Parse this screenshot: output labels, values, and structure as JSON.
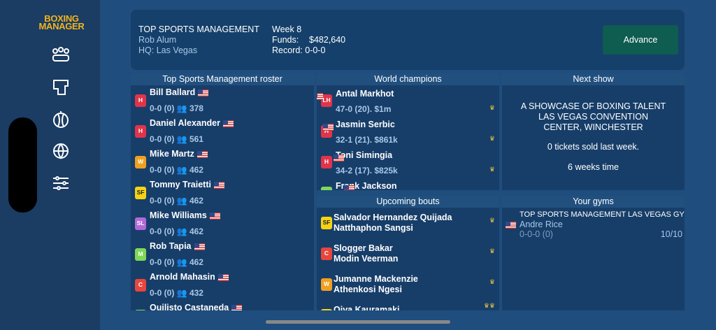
{
  "logo": {
    "line1": "BOXING",
    "line2": "MANAGER"
  },
  "header": {
    "team": "TOP SPORTS MANAGEMENT",
    "manager": "Rob Alum",
    "hq": "HQ: Las Vegas",
    "week": "Week 8",
    "funds_label": "Funds:",
    "funds": "$482,640",
    "record": "Record: 0-0-0",
    "button": "Advance"
  },
  "roster": {
    "title": "Top Sports Management roster",
    "boxers": [
      {
        "name": "Bill Ballard",
        "badge": "H",
        "badge_color": "#e0344a",
        "record": "0-0 (0)",
        "fans": "378"
      },
      {
        "name": "Daniel Alexander",
        "badge": "H",
        "badge_color": "#e0344a",
        "record": "0-0 (0)",
        "fans": "561"
      },
      {
        "name": "Mike Martz",
        "badge": "W",
        "badge_color": "#f0a020",
        "record": "0-0 (0)",
        "fans": "462"
      },
      {
        "name": "Tommy Traietti",
        "badge": "SF",
        "badge_color": "#f5d313",
        "record": "0-0 (0)",
        "fans": "462"
      },
      {
        "name": "Mike Williams",
        "badge": "SL",
        "badge_color": "#b06ad8",
        "record": "0-0 (0)",
        "fans": "462"
      },
      {
        "name": "Rob Tapia",
        "badge": "M",
        "badge_color": "#7ed957",
        "record": "0-0 (0)",
        "fans": "462"
      },
      {
        "name": "Arnold Mahasin",
        "badge": "C",
        "badge_color": "#e8463c",
        "record": "0-0 (0)",
        "fans": "432"
      },
      {
        "name": "Quilisto Castaneda",
        "badge_color": "#7ed957"
      }
    ]
  },
  "champions": {
    "title": "World champions",
    "boxers": [
      {
        "name": "Antal Markhot",
        "badge": "LH",
        "badge_color": "#e0344a",
        "stats": "47-0 (20). $1m"
      },
      {
        "name": "Jasmin Serbic",
        "badge": "H",
        "badge_color": "#e0344a",
        "stats": "32-1 (21). $861k"
      },
      {
        "name": "Toni Simingia",
        "badge": "H",
        "badge_color": "#e0344a",
        "stats": "34-2 (17). $825k"
      },
      {
        "name": "Frank Jackson",
        "badge_color": "#7ed957"
      }
    ]
  },
  "bouts": {
    "title": "Upcoming bouts",
    "items": [
      {
        "badge": "SF",
        "badge_color": "#f5d313",
        "fighter1": "Salvador Hernandez Quijada",
        "fighter2": "Natthaphon Sangsi"
      },
      {
        "badge": "C",
        "badge_color": "#e8463c",
        "fighter1": "Slogger Bakar",
        "fighter2": "Modin Veerman"
      },
      {
        "badge": "W",
        "badge_color": "#f0a020",
        "fighter1": "Jumanne Mackenzie",
        "fighter2": "Athenkosi Ngesi"
      },
      {
        "badge_color": "#f5d313",
        "fighter1": "Oiva Kauramaki"
      }
    ]
  },
  "next_show": {
    "title": "Next show",
    "lines": [
      "A SHOWCASE OF BOXING TALENT",
      "LAS VEGAS CONVENTION",
      "CENTER, WINCHESTER"
    ],
    "tickets": "0 tickets sold last week.",
    "time": "6 weeks time"
  },
  "gyms": {
    "title": "Your gyms",
    "name": "TOP SPORTS MANAGEMENT LAS VEGAS GYM",
    "trainer": "Andre Rice",
    "record": "0-0-0 (0)",
    "capacity": "10/10"
  }
}
